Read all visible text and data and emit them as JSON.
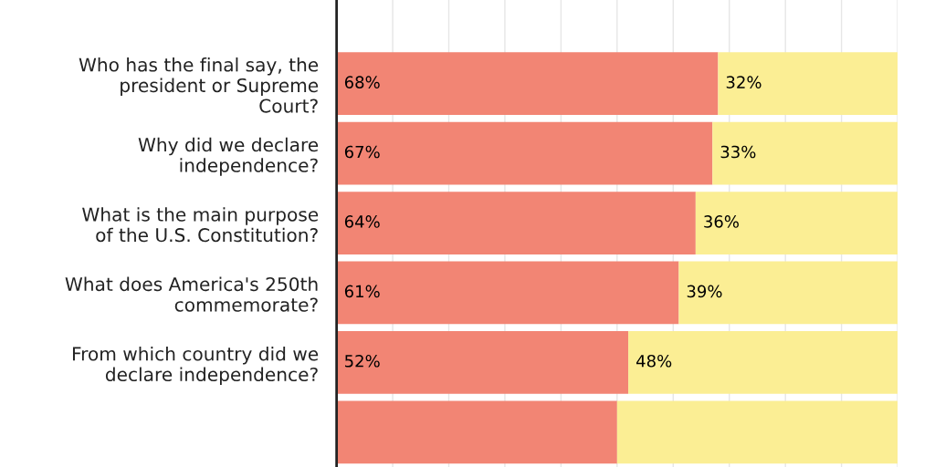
{
  "chart_data": {
    "type": "bar",
    "orientation": "horizontal",
    "stacked": true,
    "categories": [
      "Who has the final say, the president or Supreme Court?",
      "Why did we declare independence?",
      "What is the main purpose of the U.S. Constitution?",
      "What does America's 250th commemorate?",
      "From which country did we declare independence?",
      null
    ],
    "series": [
      {
        "color": "#f28574",
        "values": [
          68,
          67,
          64,
          61,
          52,
          50
        ],
        "value_labels": [
          "68%",
          "67%",
          "64%",
          "61%",
          "52%",
          null
        ]
      },
      {
        "color": "#fbee94",
        "values": [
          32,
          33,
          36,
          39,
          48,
          50
        ],
        "value_labels": [
          "32%",
          "33%",
          "36%",
          "39%",
          "48%",
          null
        ]
      }
    ],
    "xlim": [
      0,
      100
    ],
    "xticks": [
      {
        "value": 0,
        "label": null
      },
      {
        "value": 10,
        "label": null
      },
      {
        "value": 20,
        "label": null
      },
      {
        "value": 30,
        "label": null
      },
      {
        "value": 40,
        "label": null
      },
      {
        "value": 50,
        "label": null
      },
      {
        "value": 60,
        "label": null
      },
      {
        "value": 70,
        "label": null
      },
      {
        "value": 80,
        "label": null
      },
      {
        "value": 90,
        "label": null
      },
      {
        "value": 100,
        "label": null
      }
    ],
    "grid": "x",
    "tick_labels": "y"
  }
}
